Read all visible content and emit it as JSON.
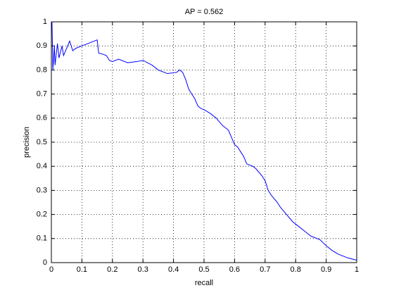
{
  "chart_data": {
    "type": "line",
    "title": "AP = 0.562",
    "x_label": "recall",
    "y_label": "precision",
    "x": [
      0,
      0.002,
      0.005,
      0.01,
      0.012,
      0.02,
      0.025,
      0.035,
      0.04,
      0.06,
      0.07,
      0.08,
      0.1,
      0.15,
      0.155,
      0.17,
      0.18,
      0.19,
      0.2,
      0.22,
      0.25,
      0.28,
      0.3,
      0.33,
      0.35,
      0.37,
      0.38,
      0.41,
      0.42,
      0.43,
      0.44,
      0.45,
      0.46,
      0.47,
      0.48,
      0.49,
      0.5,
      0.52,
      0.54,
      0.56,
      0.58,
      0.59,
      0.6,
      0.61,
      0.62,
      0.63,
      0.64,
      0.66,
      0.67,
      0.69,
      0.7,
      0.71,
      0.72,
      0.74,
      0.75,
      0.77,
      0.79,
      0.81,
      0.83,
      0.85,
      0.87,
      0.88,
      0.9,
      0.92,
      0.94,
      0.97,
      1
    ],
    "values": [
      1,
      1,
      0.8,
      0.9,
      0.82,
      0.91,
      0.85,
      0.9,
      0.86,
      0.92,
      0.88,
      0.89,
      0.9,
      0.925,
      0.87,
      0.865,
      0.86,
      0.84,
      0.835,
      0.845,
      0.83,
      0.835,
      0.84,
      0.82,
      0.8,
      0.79,
      0.785,
      0.79,
      0.8,
      0.79,
      0.76,
      0.72,
      0.7,
      0.68,
      0.65,
      0.64,
      0.635,
      0.62,
      0.6,
      0.57,
      0.55,
      0.52,
      0.49,
      0.48,
      0.46,
      0.44,
      0.41,
      0.4,
      0.39,
      0.36,
      0.34,
      0.3,
      0.28,
      0.25,
      0.23,
      0.2,
      0.17,
      0.15,
      0.13,
      0.11,
      0.1,
      0.095,
      0.07,
      0.05,
      0.035,
      0.02,
      0.01
    ],
    "color": "#0000ff",
    "xlim": [
      0,
      1
    ],
    "xticks": [
      0,
      0.1,
      0.2,
      0.3,
      0.4,
      0.5,
      0.6,
      0.7,
      0.8,
      0.9,
      1
    ],
    "ylim": [
      0,
      1
    ],
    "yticks": [
      0,
      0.1,
      0.2,
      0.3,
      0.4,
      0.5,
      0.6,
      0.7,
      0.8,
      0.9,
      1
    ],
    "grid": true
  }
}
